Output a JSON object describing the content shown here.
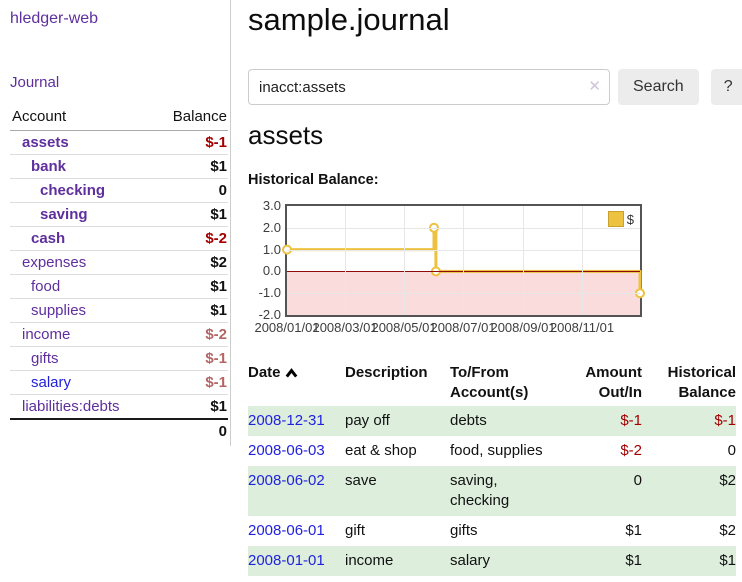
{
  "sidebar": {
    "app_title": "hledger-web",
    "nav": {
      "journal_label": "Journal"
    },
    "table": {
      "account_header": "Account",
      "balance_header": "Balance"
    },
    "accounts": [
      {
        "name": "assets",
        "balance": "$-1"
      },
      {
        "name": "bank",
        "balance": "$1"
      },
      {
        "name": "checking",
        "balance": "0"
      },
      {
        "name": "saving",
        "balance": "$1"
      },
      {
        "name": "cash",
        "balance": "$-2"
      },
      {
        "name": "expenses",
        "balance": "$2"
      },
      {
        "name": "food",
        "balance": "$1"
      },
      {
        "name": "supplies",
        "balance": "$1"
      },
      {
        "name": "income",
        "balance": "$-2"
      },
      {
        "name": "gifts",
        "balance": "$-1"
      },
      {
        "name": "salary",
        "balance": "$-1"
      },
      {
        "name": "liabilities:debts",
        "balance": "$1"
      }
    ],
    "total": "0"
  },
  "header": {
    "title": "sample.journal"
  },
  "search": {
    "value": "inacct:assets",
    "clear_icon": "✕",
    "button_label": "Search",
    "help_label": "?"
  },
  "main": {
    "account_heading": "assets",
    "chart_label": "Historical Balance:"
  },
  "chart_data": {
    "type": "line",
    "title": "Historical Balance",
    "legend_label": "$",
    "legend_position": "top-right",
    "ylim": [
      -2,
      3
    ],
    "yticks": [
      "3.0",
      "2.0",
      "1.0",
      "0.0",
      "-1.0",
      "-2.0"
    ],
    "xticks": [
      "2008/01/01",
      "2008/03/01",
      "2008/05/01",
      "2008/07/01",
      "2008/09/01",
      "2008/11/01"
    ],
    "grid": true,
    "zero_line_color": "#8f0b0b",
    "negative_region_color": "#fbdcdc",
    "series": [
      {
        "name": "$",
        "color": "#edc240",
        "style": "step-with-markers",
        "points": [
          {
            "date": "2008-01-01",
            "value": 1
          },
          {
            "date": "2008-06-01",
            "value": 2
          },
          {
            "date": "2008-06-03",
            "value": 0
          },
          {
            "date": "2008-12-31",
            "value": -1
          }
        ]
      }
    ]
  },
  "register": {
    "headers": {
      "date": "Date",
      "description": "Description",
      "tofrom_line1": "To/From",
      "tofrom_line2": "Account(s)",
      "amount_line1": "Amount",
      "amount_line2": "Out/In",
      "balance_line1": "Historical",
      "balance_line2": "Balance"
    },
    "rows": [
      {
        "date": "2008-12-31",
        "description": "pay off",
        "accounts": "debts",
        "amount": "$-1",
        "balance": "$-1"
      },
      {
        "date": "2008-06-03",
        "description": "eat & shop",
        "accounts": "food, supplies",
        "amount": "$-2",
        "balance": "0"
      },
      {
        "date": "2008-06-02",
        "description": "save",
        "accounts": "saving, checking",
        "amount": "0",
        "balance": "$2"
      },
      {
        "date": "2008-06-01",
        "description": "gift",
        "accounts": "gifts",
        "amount": "$1",
        "balance": "$2"
      },
      {
        "date": "2008-01-01",
        "description": "income",
        "accounts": "salary",
        "amount": "$1",
        "balance": "$1"
      }
    ]
  }
}
